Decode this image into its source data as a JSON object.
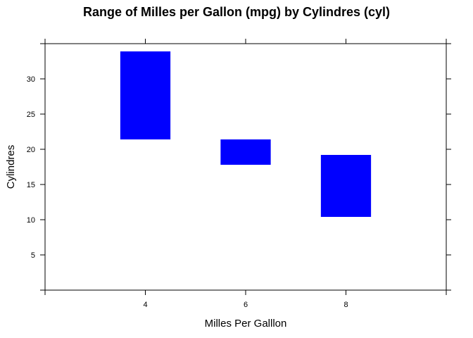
{
  "chart_data": {
    "type": "bar",
    "subtype": "floating-range",
    "title": "Range of Milles per Gallon (mpg) by Cylindres (cyl)",
    "xlabel": "Milles Per Galllon",
    "ylabel": "Cylindres",
    "categories": [
      "4",
      "6",
      "8"
    ],
    "x": [
      4,
      6,
      8
    ],
    "ranges": [
      {
        "x": 4,
        "min": 21.4,
        "max": 33.9
      },
      {
        "x": 6,
        "min": 17.8,
        "max": 21.4
      },
      {
        "x": 8,
        "min": 10.4,
        "max": 19.2
      }
    ],
    "bar_color": "#0000FF",
    "xlim": [
      2,
      10
    ],
    "ylim": [
      0,
      35
    ],
    "xticks": [
      4,
      6,
      8
    ],
    "yticks": [
      5,
      10,
      15,
      20,
      25,
      30
    ],
    "grid": false,
    "legend": "none"
  }
}
